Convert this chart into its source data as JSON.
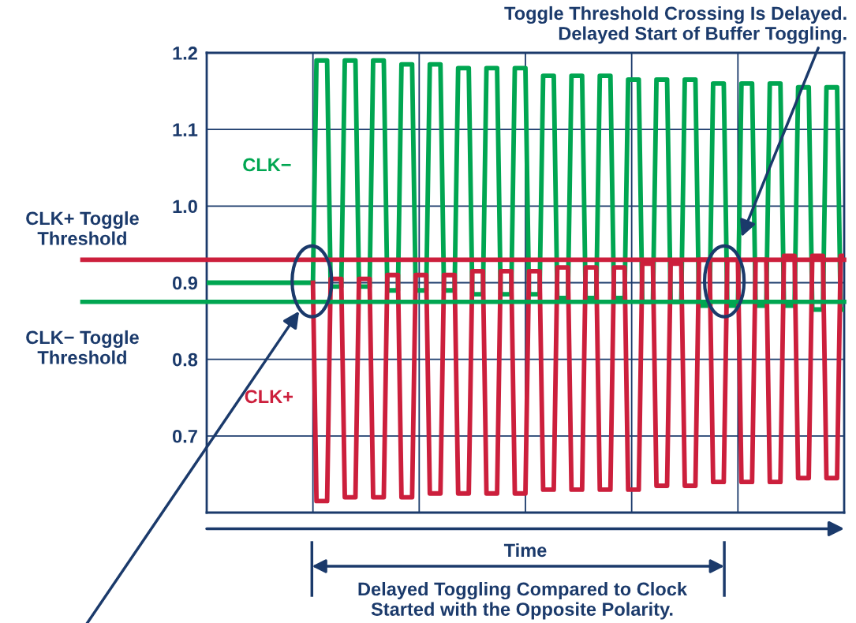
{
  "chart_data": {
    "type": "line",
    "xlabel": "Time",
    "categories": [
      null,
      null,
      null,
      null,
      null,
      null,
      null,
      null,
      null,
      null,
      null,
      null,
      null,
      null,
      null,
      null,
      null,
      null,
      null,
      null,
      null,
      null,
      null,
      null,
      null,
      null,
      null,
      null,
      null,
      null,
      null,
      null,
      null,
      null,
      null,
      null,
      null,
      null,
      null,
      null,
      null,
      null,
      null,
      null,
      null,
      null,
      null,
      null,
      null,
      null,
      null,
      null,
      null,
      null,
      null,
      null,
      null,
      null,
      null,
      null,
      null,
      null,
      null,
      null,
      null,
      null,
      null,
      null,
      null,
      null,
      null,
      null,
      null,
      null,
      null,
      null,
      null,
      null,
      null,
      null,
      null,
      null,
      null,
      null,
      null,
      null,
      null,
      null,
      null,
      null,
      null,
      null,
      null,
      null,
      null,
      null,
      null,
      null,
      null,
      null,
      null,
      null,
      null,
      null,
      null,
      null,
      null,
      null,
      null,
      null,
      null,
      null,
      null,
      null,
      null,
      null,
      null,
      null,
      null,
      null,
      null,
      null,
      null,
      null,
      null,
      null,
      null,
      null,
      null,
      null,
      null,
      null,
      null,
      null,
      null,
      null,
      null,
      null,
      null,
      null,
      null,
      null,
      null,
      null,
      null,
      null,
      null,
      null,
      null,
      null,
      null,
      null,
      null,
      null,
      null,
      null,
      null,
      null,
      null,
      null,
      null,
      null,
      null,
      null,
      null,
      null,
      null,
      null,
      null,
      null,
      null,
      null,
      null,
      null,
      null,
      null,
      null,
      null,
      null,
      null,
      null
    ],
    "ylim": [
      0.6,
      1.2
    ],
    "yticks": [
      0.7,
      0.8,
      0.9,
      {
        "value": 1,
        "label": "1.0"
      },
      1.1,
      1.2
    ],
    "grid": true,
    "tick_labels": "y",
    "marker": "none",
    "line_style": "solid",
    "series": [
      {
        "name": "CLK−",
        "color": "#00a651",
        "values": [
          0.9,
          0.9,
          0.9,
          0.9,
          0.9,
          0.9,
          0.9,
          0.9,
          0.9,
          0.9,
          0.9,
          0.9,
          0.9,
          0.9,
          0.9,
          0.9,
          0.9,
          0.9,
          0.9,
          0.9,
          0.9,
          0.9,
          0.9,
          0.9,
          0.9,
          0.9,
          0.9,
          0.9,
          0.9,
          0.9,
          0.9,
          1.19,
          1.19,
          1.19,
          1.19,
          0.895,
          0.895,
          0.895,
          0.895,
          1.19,
          1.19,
          1.19,
          1.19,
          0.895,
          0.895,
          0.895,
          0.895,
          1.19,
          1.19,
          1.19,
          1.19,
          0.89,
          0.89,
          0.89,
          0.89,
          1.185,
          1.185,
          1.185,
          1.185,
          0.89,
          0.89,
          0.89,
          0.89,
          1.185,
          1.185,
          1.185,
          1.185,
          0.89,
          0.89,
          0.89,
          0.89,
          1.18,
          1.18,
          1.18,
          1.18,
          0.885,
          0.885,
          0.885,
          0.885,
          1.18,
          1.18,
          1.18,
          1.18,
          0.885,
          0.885,
          0.885,
          0.885,
          1.18,
          1.18,
          1.18,
          1.18,
          0.885,
          0.885,
          0.885,
          0.885,
          1.17,
          1.17,
          1.17,
          1.17,
          0.88,
          0.88,
          0.88,
          0.88,
          1.17,
          1.17,
          1.17,
          1.17,
          0.88,
          0.88,
          0.88,
          0.88,
          1.17,
          1.17,
          1.17,
          1.17,
          0.88,
          0.88,
          0.88,
          0.88,
          1.165,
          1.165,
          1.165,
          1.165,
          0.875,
          0.875,
          0.875,
          0.875,
          1.165,
          1.165,
          1.165,
          1.165,
          0.875,
          0.875,
          0.875,
          0.875,
          1.165,
          1.165,
          1.165,
          1.165,
          0.87,
          0.87,
          0.87,
          0.87,
          1.16,
          1.16,
          1.16,
          1.16,
          0.87,
          0.87,
          0.87,
          0.87,
          1.16,
          1.16,
          1.16,
          1.16,
          0.87,
          0.87,
          0.87,
          0.87,
          1.16,
          1.16,
          1.16,
          1.16,
          0.87,
          0.87,
          0.87,
          0.87,
          1.155,
          1.155,
          1.155,
          1.155,
          0.865,
          0.865,
          0.865,
          0.865,
          1.155,
          1.155,
          1.155,
          1.155,
          0.865,
          0.865
        ]
      },
      {
        "name": "CLK+",
        "color": "#cc1f3c",
        "values": [
          null,
          null,
          null,
          null,
          null,
          null,
          null,
          null,
          null,
          null,
          null,
          null,
          null,
          null,
          null,
          null,
          null,
          null,
          null,
          null,
          null,
          null,
          null,
          null,
          null,
          null,
          null,
          null,
          null,
          null,
          0.9,
          0.615,
          0.615,
          0.615,
          0.615,
          0.905,
          0.905,
          0.905,
          0.905,
          0.62,
          0.62,
          0.62,
          0.62,
          0.905,
          0.905,
          0.905,
          0.905,
          0.62,
          0.62,
          0.62,
          0.62,
          0.91,
          0.91,
          0.91,
          0.91,
          0.62,
          0.62,
          0.62,
          0.62,
          0.91,
          0.91,
          0.91,
          0.91,
          0.625,
          0.625,
          0.625,
          0.625,
          0.91,
          0.91,
          0.91,
          0.91,
          0.625,
          0.625,
          0.625,
          0.625,
          0.915,
          0.915,
          0.915,
          0.915,
          0.625,
          0.625,
          0.625,
          0.625,
          0.915,
          0.915,
          0.915,
          0.915,
          0.625,
          0.625,
          0.625,
          0.625,
          0.915,
          0.915,
          0.915,
          0.915,
          0.63,
          0.63,
          0.63,
          0.63,
          0.92,
          0.92,
          0.92,
          0.92,
          0.63,
          0.63,
          0.63,
          0.63,
          0.92,
          0.92,
          0.92,
          0.92,
          0.63,
          0.63,
          0.63,
          0.63,
          0.92,
          0.92,
          0.92,
          0.92,
          0.63,
          0.63,
          0.63,
          0.63,
          0.925,
          0.925,
          0.925,
          0.925,
          0.635,
          0.635,
          0.635,
          0.635,
          0.925,
          0.925,
          0.925,
          0.925,
          0.635,
          0.635,
          0.635,
          0.635,
          0.93,
          0.93,
          0.93,
          0.93,
          0.64,
          0.64,
          0.64,
          0.64,
          0.93,
          0.93,
          0.93,
          0.93,
          0.64,
          0.64,
          0.64,
          0.64,
          0.93,
          0.93,
          0.93,
          0.93,
          0.64,
          0.64,
          0.64,
          0.64,
          0.935,
          0.935,
          0.935,
          0.935,
          0.645,
          0.645,
          0.645,
          0.645,
          0.935,
          0.935,
          0.935,
          0.935,
          0.645,
          0.645,
          0.645,
          0.645,
          0.935,
          0.935
        ]
      }
    ],
    "ref_lines": [
      {
        "axis": "y",
        "value": 0.93,
        "label": "CLK+ Toggle\nThreshold",
        "color": "#cc1f3c",
        "line_style": "solid"
      },
      {
        "axis": "y",
        "value": 0.875,
        "label": "CLK− Toggle\nThreshold",
        "color": "#00a651",
        "line_style": "solid"
      }
    ],
    "annotations": [
      "Toggle Threshold Crossing Is Delayed.\nDelayed Start of Buffer Toggling.",
      "Delayed Toggling Compared to Clock\nStarted with the Opposite Polarity."
    ]
  }
}
